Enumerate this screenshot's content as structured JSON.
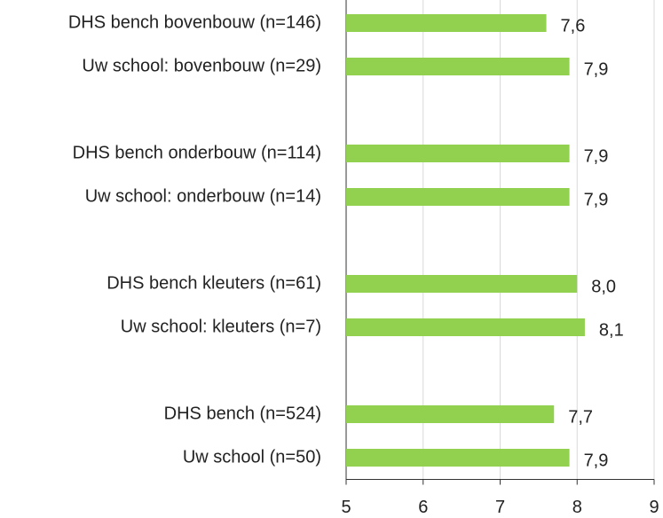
{
  "chart_data": {
    "type": "hbar",
    "categories": [
      "DHS bench bovenbouw (n=146)",
      "Uw school: bovenbouw (n=29)",
      null,
      "DHS bench onderbouw (n=114)",
      "Uw school: onderbouw (n=14)",
      null,
      "DHS bench kleuters (n=61)",
      "Uw school: kleuters (n=7)",
      null,
      "DHS bench (n=524)",
      "Uw school (n=50)"
    ],
    "values": [
      7.6,
      7.9,
      null,
      7.9,
      7.9,
      null,
      8.0,
      8.1,
      null,
      7.7,
      7.9
    ],
    "value_labels": [
      "7,6",
      "7,9",
      null,
      "7,9",
      "7,9",
      null,
      "8,0",
      "8,1",
      null,
      "7,7",
      "7,9"
    ],
    "color": "#92d050",
    "xlim": [
      5,
      9
    ],
    "xticks": [
      5,
      6,
      7,
      8,
      9
    ],
    "grid": true
  }
}
